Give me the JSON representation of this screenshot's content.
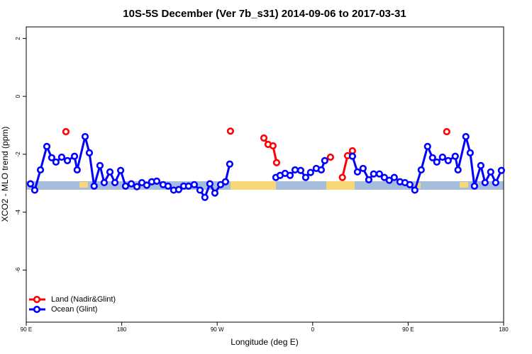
{
  "chart_data": {
    "type": "line",
    "title": "10S-5S December (Ver 7b_s31)   2014-09-06 to 2017-03-31",
    "x_label": "Longitude (deg E)",
    "y_label": "XCO2 - MLO trend (ppm)",
    "xlim": [
      90,
      540
    ],
    "ylim": [
      -7.8,
      2.4
    ],
    "xticks": [
      {
        "value": 90,
        "label": "90 E"
      },
      180,
      {
        "value": 270,
        "label": "90 W"
      },
      {
        "value": 360,
        "label": "0"
      },
      {
        "value": 450,
        "label": "90 E"
      },
      {
        "value": 540,
        "label": "180"
      }
    ],
    "yticks": [
      -6,
      -4,
      -2,
      0,
      2
    ],
    "legend": "bottom-left",
    "series": [
      {
        "name": "Land (Nadir&Glint)",
        "color": "#ff0000",
        "x": [
          127.4,
          null,
          282.5,
          null,
          314,
          318,
          322.6,
          326,
          null,
          376.8,
          null,
          388,
          392.9,
          397.5,
          null,
          486.4
        ],
        "values": [
          -1.22,
          null,
          -1.2,
          null,
          -1.44,
          -1.66,
          -1.71,
          -2.29,
          null,
          -2.1,
          null,
          -2.8,
          -2.05,
          -1.88,
          null,
          -1.22
        ]
      },
      {
        "name": "Ocean (Glint)",
        "color": "#0000ff",
        "x": [
          94,
          98,
          103.4,
          109.4,
          114,
          118,
          123.4,
          128.8,
          135.5,
          138,
          145.5,
          149.5,
          154,
          159.5,
          163.5,
          168.9,
          173.6,
          179,
          183.6,
          189,
          194.3,
          199,
          203.6,
          208.3,
          213,
          219,
          223.7,
          229,
          233.7,
          238.4,
          243,
          248.4,
          253.8,
          258.4,
          263.1,
          267.8,
          273.2,
          277.8,
          281.8,
          null,
          325.3,
          329.3,
          334,
          338.7,
          343.4,
          348.7,
          353.4,
          358,
          363.4,
          368.1,
          371.4,
          null,
          397.5,
          402.2,
          407.5,
          412.9,
          417.5,
          422.9,
          427.6,
          432.2,
          436.9,
          442.3,
          447,
          451.6,
          456.3,
          462.3,
          468.3,
          473,
          477,
          482.4,
          487.7,
          494.4,
          497,
          504.4,
          508.5,
          512.5,
          518.5,
          522.5,
          527.8,
          532.5,
          537.9
        ],
        "values": [
          -3.02,
          -3.24,
          -2.54,
          -1.73,
          -2.12,
          -2.27,
          -2.1,
          -2.22,
          -2.07,
          -2.54,
          -1.39,
          -1.95,
          -3.1,
          -2.39,
          -2.98,
          -2.61,
          -2.98,
          -2.56,
          -3.1,
          -3.02,
          -3.12,
          -2.98,
          -3.07,
          -2.95,
          -2.93,
          -3.05,
          -3.1,
          -3.24,
          -3.22,
          -3.1,
          -3.1,
          -3.05,
          -3.24,
          -3.49,
          -3.02,
          -3.34,
          -3.05,
          -2.95,
          -2.34,
          null,
          -2.8,
          -2.73,
          -2.66,
          -2.73,
          -2.54,
          -2.56,
          -2.8,
          -2.63,
          -2.49,
          -2.54,
          -2.22,
          null,
          -2.07,
          -2.61,
          -2.49,
          -2.88,
          -2.68,
          -2.68,
          -2.8,
          -2.9,
          -2.8,
          -2.95,
          -2.98,
          -3.05,
          -3.24,
          -2.54,
          -1.73,
          -2.12,
          -2.27,
          -2.1,
          -2.22,
          -2.07,
          -2.54,
          -1.39,
          -1.95,
          -3.1,
          -2.39,
          -2.98,
          -2.61,
          -2.98,
          -2.56
        ]
      }
    ]
  }
}
